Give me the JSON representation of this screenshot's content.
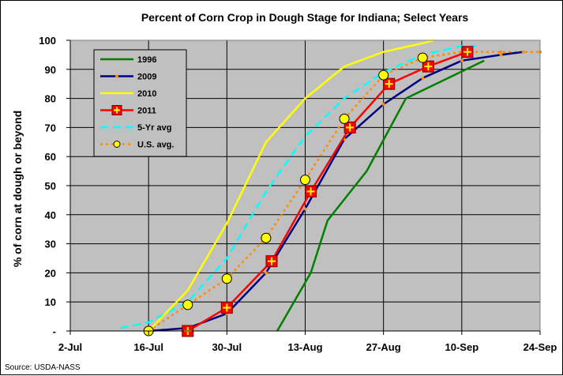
{
  "chart_data": {
    "type": "line",
    "title": "Percent of Corn Crop in Dough Stage for Indiana; Select Years",
    "ylabel": "% of corn at dough or beyond",
    "xlabel": "",
    "source": "Source: USDA-NASS",
    "ylim": [
      0,
      100
    ],
    "xlim": [
      "2-Jul",
      "24-Sep"
    ],
    "x_ticks": [
      "2-Jul",
      "16-Jul",
      "30-Jul",
      "13-Aug",
      "27-Aug",
      "10-Sep",
      "24-Sep"
    ],
    "y_ticks": [
      "-",
      "10",
      "20",
      "30",
      "40",
      "50",
      "60",
      "70",
      "80",
      "90",
      "100"
    ],
    "grid": true,
    "legend_position": "top-left",
    "background_color": "#c0c0c0",
    "series": [
      {
        "name": "1996",
        "color": "#008000",
        "style": "solid",
        "marker": "none",
        "x": [
          "8-Aug",
          "14-Aug",
          "17-Aug",
          "24-Aug",
          "31-Aug",
          "14-Sep"
        ],
        "values": [
          0,
          20,
          38,
          55,
          80,
          93
        ]
      },
      {
        "name": "2009",
        "color": "#000080",
        "style": "solid",
        "marker": "small-orange",
        "x": [
          "16-Jul",
          "23-Jul",
          "30-Jul",
          "6-Aug",
          "13-Aug",
          "20-Aug",
          "27-Aug",
          "3-Sep",
          "10-Sep",
          "17-Sep",
          "21-Sep"
        ],
        "values": [
          0,
          1,
          6,
          20,
          42,
          66,
          78,
          87,
          93,
          95,
          96
        ]
      },
      {
        "name": "2010",
        "color": "#ffff00",
        "style": "solid",
        "marker": "none",
        "x": [
          "16-Jul",
          "23-Jul",
          "30-Jul",
          "6-Aug",
          "13-Aug",
          "20-Aug",
          "27-Aug",
          "3-Sep",
          "5-Sep"
        ],
        "values": [
          0,
          14,
          37,
          65,
          80,
          91,
          96,
          99,
          100
        ]
      },
      {
        "name": "2011",
        "color": "#ff0000",
        "style": "solid",
        "marker": "square-cross",
        "x": [
          "23-Jul",
          "30-Jul",
          "7-Aug",
          "14-Aug",
          "21-Aug",
          "28-Aug",
          "4-Sep",
          "11-Sep"
        ],
        "values": [
          0,
          8,
          24,
          48,
          70,
          85,
          91,
          96
        ]
      },
      {
        "name": "5-Yr avg",
        "color": "#00ffff",
        "style": "dashed",
        "marker": "none",
        "x": [
          "11-Jul",
          "16-Jul",
          "23-Jul",
          "30-Jul",
          "6-Aug",
          "13-Aug",
          "20-Aug",
          "27-Aug",
          "3-Sep",
          "10-Sep",
          "13-Sep"
        ],
        "values": [
          1,
          3,
          10,
          25,
          48,
          67,
          80,
          89,
          95,
          98,
          98
        ]
      },
      {
        "name": "U.S. avg.",
        "color": "#ff8c00",
        "style": "dotted",
        "marker": "yellow-circle",
        "x": [
          "16-Jul",
          "23-Jul",
          "30-Jul",
          "6-Aug",
          "13-Aug",
          "20-Aug",
          "27-Aug",
          "3-Sep",
          "10-Sep",
          "17-Sep",
          "24-Sep"
        ],
        "values": [
          0,
          9,
          18,
          32,
          52,
          73,
          88,
          94,
          96,
          96,
          96
        ]
      }
    ],
    "annotations": {
      "us_avg_circles": {
        "x": [
          "16-Jul",
          "23-Jul",
          "30-Jul",
          "6-Aug",
          "13-Aug",
          "20-Aug",
          "27-Aug",
          "3-Sep"
        ],
        "values": [
          0,
          9,
          18,
          32,
          52,
          73,
          88,
          94
        ]
      }
    }
  }
}
